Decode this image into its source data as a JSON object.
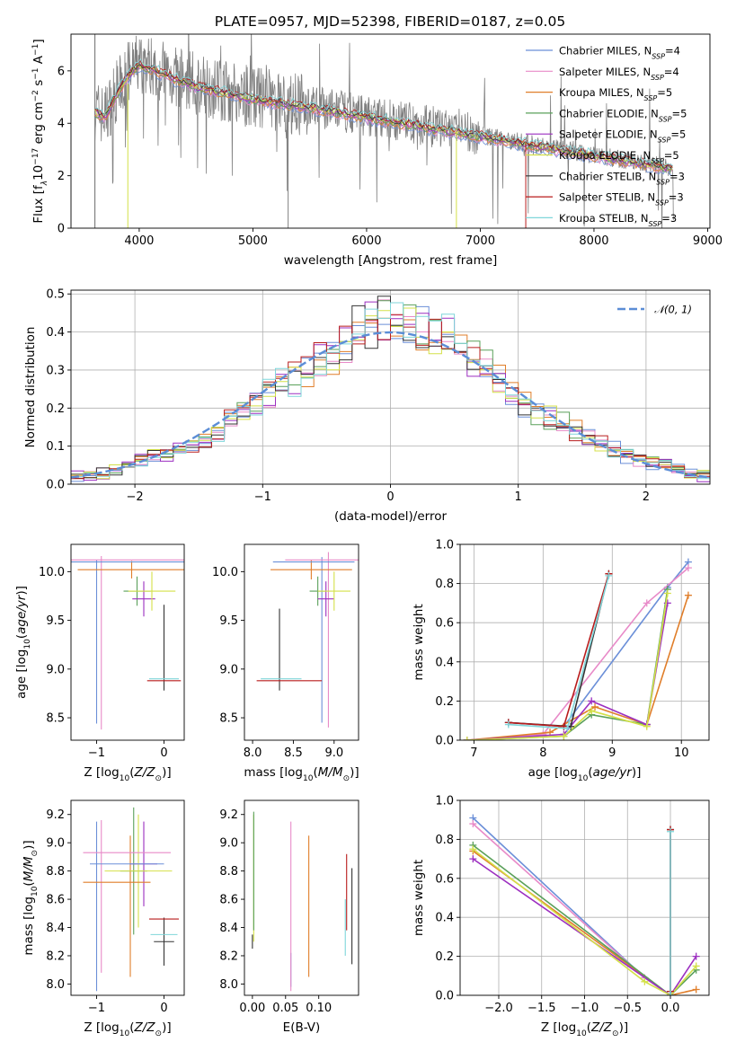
{
  "title": "PLATE=0957, MJD=52398, FIBERID=0187, z=0.05",
  "colors": {
    "Chabrier MILES": "#6b8fd8",
    "Salpeter MILES": "#e88ac8",
    "Kroupa MILES": "#e07e2a",
    "Chabrier ELODIE": "#5aa05a",
    "Salpeter ELODIE": "#9c2fc0",
    "Kroupa ELODIE": "#d4e048",
    "Chabrier STELIB": "#333333",
    "Salpeter STELIB": "#b81c1c",
    "Kroupa STELIB": "#7fd6da",
    "data": "#808080",
    "gaussian": "#5b8dd6"
  },
  "chart_data": [
    {
      "id": "spectrum",
      "type": "line",
      "xlabel": "wavelength [Angstrom, rest frame]",
      "ylabel": "Flux [f_λ 10^-17 erg cm^-2 s^-1 A^-1]",
      "xlim": [
        3400,
        9020
      ],
      "ylim": [
        0,
        7.4
      ],
      "xticks": [
        4000,
        5000,
        6000,
        7000,
        8000,
        9000
      ],
      "yticks": [
        0,
        2,
        4,
        6
      ],
      "legend_position": "upper right",
      "continuum": {
        "x": [
          3610,
          3700,
          3800,
          3900,
          4000,
          4100,
          4200,
          4300,
          4500,
          4700,
          5000,
          5300,
          5600,
          6000,
          6400,
          6800,
          7200,
          7600,
          8000,
          8400,
          8700
        ],
        "y": [
          4.5,
          4.3,
          5.2,
          5.9,
          6.3,
          6.2,
          6.0,
          5.8,
          5.5,
          5.3,
          5.0,
          4.8,
          4.6,
          4.3,
          4.0,
          3.7,
          3.4,
          3.1,
          2.8,
          2.5,
          2.3
        ]
      },
      "series": [
        {
          "name": "Chabrier MILES",
          "nssp": "4"
        },
        {
          "name": "Salpeter MILES",
          "nssp": "4"
        },
        {
          "name": "Kroupa MILES",
          "nssp": "5"
        },
        {
          "name": "Chabrier ELODIE",
          "nssp": "5"
        },
        {
          "name": "Salpeter ELODIE",
          "nssp": "5"
        },
        {
          "name": "Kroupa ELODIE",
          "nssp": "5"
        },
        {
          "name": "Chabrier STELIB",
          "nssp": "3"
        },
        {
          "name": "Salpeter STELIB",
          "nssp": "3"
        },
        {
          "name": "Kroupa STELIB",
          "nssp": "3"
        }
      ]
    },
    {
      "id": "residuals",
      "type": "line",
      "xlabel": "(data-model)/error",
      "ylabel": "Normed distribution",
      "xlim": [
        -2.5,
        2.5
      ],
      "ylim": [
        0,
        0.51
      ],
      "xticks": [
        -2,
        -1,
        0,
        1,
        2
      ],
      "yticks": [
        0.0,
        0.1,
        0.2,
        0.3,
        0.4,
        0.5
      ],
      "grid": true,
      "legend_position": "upper right",
      "legend": "N(0,1)",
      "bin_width": 0.1,
      "bin_start": -2.5,
      "histogram_base": [
        0.02,
        0.02,
        0.03,
        0.04,
        0.05,
        0.06,
        0.07,
        0.08,
        0.09,
        0.11,
        0.12,
        0.14,
        0.17,
        0.19,
        0.21,
        0.24,
        0.26,
        0.28,
        0.3,
        0.33,
        0.35,
        0.37,
        0.4,
        0.42,
        0.44,
        0.43,
        0.42,
        0.41,
        0.4,
        0.39,
        0.37,
        0.34,
        0.31,
        0.28,
        0.24,
        0.21,
        0.19,
        0.18,
        0.16,
        0.14,
        0.12,
        0.11,
        0.09,
        0.08,
        0.07,
        0.06,
        0.05,
        0.04,
        0.03,
        0.02
      ]
    },
    {
      "id": "age-vs-Z",
      "type": "scatter",
      "xlabel": "Z [log10(Z/Z⊙)]",
      "ylabel": "age [log10(age/yr)]",
      "xlim": [
        -1.38,
        0.3
      ],
      "ylim": [
        8.27,
        10.28
      ],
      "xticks": [
        -1,
        0
      ],
      "yticks": [
        8.5,
        9.0,
        9.5,
        10.0
      ],
      "points": [
        {
          "series": "Chabrier MILES",
          "x": -1.0,
          "y": 9.28,
          "xerr": 0.0,
          "yerr": 0.84
        },
        {
          "series": "Salpeter MILES",
          "x": -0.93,
          "y": 9.27,
          "xerr": 0.0,
          "yerr": 0.89
        },
        {
          "series": "Kroupa MILES",
          "x": -0.48,
          "y": 10.02,
          "xerr": 0.8,
          "yerr": 0.09
        },
        {
          "series": "Chabrier ELODIE",
          "x": -0.4,
          "y": 9.8,
          "xerr": 0.2,
          "yerr": 0.15
        },
        {
          "series": "Salpeter ELODIE",
          "x": -0.3,
          "y": 9.72,
          "xerr": 0.17,
          "yerr": 0.18
        },
        {
          "series": "Kroupa ELODIE",
          "x": -0.18,
          "y": 9.8,
          "xerr": 0.35,
          "yerr": 0.2
        },
        {
          "series": "Chabrier STELIB",
          "x": 0.0,
          "y": 9.22,
          "xerr": 0.0,
          "yerr": 0.44
        },
        {
          "series": "Salpeter STELIB",
          "x": 0.0,
          "y": 8.88,
          "xerr": 0.25,
          "yerr": 0.0
        },
        {
          "series": "Kroupa STELIB",
          "x": 0.0,
          "y": 8.9,
          "xerr": 0.22,
          "yerr": 0.0
        },
        {
          "series": "Salpeter MILES",
          "x": -0.55,
          "y": 10.12,
          "xerr": 1.2,
          "yerr": 0.0
        },
        {
          "series": "Chabrier MILES",
          "x": -0.45,
          "y": 10.1,
          "xerr": 1.0,
          "yerr": 0.0
        }
      ]
    },
    {
      "id": "age-vs-mass",
      "type": "scatter",
      "xlabel": "mass [log10(M/M⊙)]",
      "ylabel": "",
      "xlim": [
        7.9,
        9.3
      ],
      "ylim": [
        8.27,
        10.28
      ],
      "xticks": [
        8.0,
        8.5,
        9.0
      ],
      "yticks": [
        8.5,
        9.0,
        9.5,
        10.0
      ],
      "points": [
        {
          "series": "Chabrier MILES",
          "x": 8.85,
          "y": 9.3,
          "xerr": 0.0,
          "yerr": 0.85
        },
        {
          "series": "Salpeter MILES",
          "x": 8.93,
          "y": 9.3,
          "xerr": 0.0,
          "yerr": 0.9
        },
        {
          "series": "Kroupa MILES",
          "x": 8.72,
          "y": 10.02,
          "xerr": 0.5,
          "yerr": 0.1
        },
        {
          "series": "Chabrier ELODIE",
          "x": 8.8,
          "y": 9.8,
          "xerr": 0.1,
          "yerr": 0.15
        },
        {
          "series": "Salpeter ELODIE",
          "x": 8.9,
          "y": 9.72,
          "xerr": 0.1,
          "yerr": 0.18
        },
        {
          "series": "Kroupa ELODIE",
          "x": 9.0,
          "y": 9.8,
          "xerr": 0.2,
          "yerr": 0.2
        },
        {
          "series": "Chabrier STELIB",
          "x": 8.33,
          "y": 9.2,
          "xerr": 0.0,
          "yerr": 0.42
        },
        {
          "series": "Salpeter STELIB",
          "x": 8.45,
          "y": 8.88,
          "xerr": 0.4,
          "yerr": 0.0
        },
        {
          "series": "Kroupa STELIB",
          "x": 8.35,
          "y": 8.9,
          "xerr": 0.25,
          "yerr": 0.0
        },
        {
          "series": "Salpeter MILES",
          "x": 8.85,
          "y": 10.12,
          "xerr": 0.45,
          "yerr": 0.0
        },
        {
          "series": "Chabrier MILES",
          "x": 8.75,
          "y": 10.1,
          "xerr": 0.5,
          "yerr": 0.0
        }
      ]
    },
    {
      "id": "weight-vs-age",
      "type": "line",
      "xlabel": "age [log10(age/yr)]",
      "ylabel": "mass weight",
      "xlim": [
        6.8,
        10.4
      ],
      "ylim": [
        0.0,
        1.0
      ],
      "xticks": [
        7,
        8,
        9,
        10
      ],
      "yticks": [
        0.0,
        0.2,
        0.4,
        0.6,
        0.8,
        1.0
      ],
      "grid": true,
      "series": [
        {
          "name": "Chabrier MILES",
          "x": [
            7.5,
            8.3,
            9.8,
            10.1
          ],
          "y": [
            0.09,
            0.07,
            0.78,
            0.91
          ]
        },
        {
          "name": "Salpeter MILES",
          "x": [
            6.9,
            8.0,
            9.5,
            10.1
          ],
          "y": [
            0.0,
            0.03,
            0.7,
            0.88
          ]
        },
        {
          "name": "Kroupa MILES",
          "x": [
            6.9,
            8.1,
            8.75,
            9.5,
            10.1
          ],
          "y": [
            0.0,
            0.04,
            0.17,
            0.08,
            0.74
          ]
        },
        {
          "name": "Chabrier ELODIE",
          "x": [
            6.9,
            8.3,
            8.7,
            9.5,
            9.8
          ],
          "y": [
            0.0,
            0.02,
            0.13,
            0.08,
            0.77
          ]
        },
        {
          "name": "Salpeter ELODIE",
          "x": [
            6.9,
            8.3,
            8.7,
            9.5,
            9.8
          ],
          "y": [
            0.0,
            0.03,
            0.2,
            0.08,
            0.7
          ]
        },
        {
          "name": "Kroupa ELODIE",
          "x": [
            6.9,
            8.3,
            8.7,
            9.5,
            9.8
          ],
          "y": [
            0.0,
            0.02,
            0.15,
            0.07,
            0.75
          ]
        },
        {
          "name": "Chabrier STELIB",
          "x": [
            7.5,
            8.4,
            8.95
          ],
          "y": [
            0.09,
            0.07,
            0.85
          ]
        },
        {
          "name": "Salpeter STELIB",
          "x": [
            7.5,
            8.3,
            8.95
          ],
          "y": [
            0.09,
            0.07,
            0.85
          ]
        },
        {
          "name": "Kroupa STELIB",
          "x": [
            7.5,
            8.35,
            8.95
          ],
          "y": [
            0.08,
            0.06,
            0.84
          ]
        }
      ]
    },
    {
      "id": "mass-vs-Z",
      "type": "scatter",
      "xlabel": "Z [log10(Z/Z⊙)]",
      "ylabel": "mass [log10(M/M⊙)]",
      "xlim": [
        -1.38,
        0.3
      ],
      "ylim": [
        7.92,
        9.3
      ],
      "xticks": [
        -1,
        0
      ],
      "yticks": [
        8.0,
        8.2,
        8.4,
        8.6,
        8.8,
        9.0,
        9.2
      ],
      "points": [
        {
          "series": "Chabrier MILES",
          "x": -1.0,
          "y": 8.55,
          "xerr": 0.0,
          "yerr": 0.6
        },
        {
          "series": "Salpeter MILES",
          "x": -0.93,
          "y": 8.62,
          "xerr": 0.0,
          "yerr": 0.54
        },
        {
          "series": "Kroupa MILES",
          "x": -0.5,
          "y": 8.55,
          "xerr": 0.0,
          "yerr": 0.5
        },
        {
          "series": "Chabrier ELODIE",
          "x": -0.45,
          "y": 8.8,
          "xerr": 0.2,
          "yerr": 0.45
        },
        {
          "series": "Salpeter ELODIE",
          "x": -0.3,
          "y": 8.85,
          "xerr": 0.2,
          "yerr": 0.3
        },
        {
          "series": "Kroupa ELODIE",
          "x": -0.38,
          "y": 8.8,
          "xerr": 0.5,
          "yerr": 0.4
        },
        {
          "series": "Chabrier STELIB",
          "x": 0.0,
          "y": 8.3,
          "xerr": 0.15,
          "yerr": 0.17
        },
        {
          "series": "Salpeter STELIB",
          "x": 0.0,
          "y": 8.46,
          "xerr": 0.22,
          "yerr": 0.0
        },
        {
          "series": "Kroupa STELIB",
          "x": 0.0,
          "y": 8.35,
          "xerr": 0.2,
          "yerr": 0.0
        },
        {
          "series": "Salpeter MILES",
          "x": -0.55,
          "y": 8.93,
          "xerr": 0.65,
          "yerr": 0.0
        },
        {
          "series": "Chabrier MILES",
          "x": -0.55,
          "y": 8.85,
          "xerr": 0.55,
          "yerr": 0.0
        },
        {
          "series": "Kroupa MILES",
          "x": -0.7,
          "y": 8.72,
          "xerr": 0.5,
          "yerr": 0.0
        }
      ]
    },
    {
      "id": "mass-vs-EBV",
      "type": "scatter",
      "xlabel": "E(B-V)",
      "ylabel": "",
      "xlim": [
        -0.012,
        0.16
      ],
      "ylim": [
        7.92,
        9.3
      ],
      "xticks": [
        0.0,
        0.05,
        0.1
      ],
      "yticks": [
        8.0,
        8.2,
        8.4,
        8.6,
        8.8,
        9.0,
        9.2
      ],
      "points": [
        {
          "series": "Kroupa ELODIE",
          "x": 0.002,
          "y": 8.75,
          "xerr": 0.0,
          "yerr": 0.45
        },
        {
          "series": "Chabrier ELODIE",
          "x": 0.002,
          "y": 8.8,
          "xerr": 0.0,
          "yerr": 0.42
        },
        {
          "series": "Chabrier STELIB",
          "x": 0.0,
          "y": 8.3,
          "xerr": 0.0,
          "yerr": 0.05
        },
        {
          "series": "Chabrier MILES",
          "x": 0.058,
          "y": 8.1,
          "xerr": 0.0,
          "yerr": 0.12
        },
        {
          "series": "Salpeter MILES",
          "x": 0.058,
          "y": 8.55,
          "xerr": 0.0,
          "yerr": 0.6
        },
        {
          "series": "Kroupa MILES",
          "x": 0.085,
          "y": 8.55,
          "xerr": 0.0,
          "yerr": 0.5
        },
        {
          "series": "Kroupa STELIB",
          "x": 0.14,
          "y": 8.4,
          "xerr": 0.0,
          "yerr": 0.2
        },
        {
          "series": "Salpeter STELIB",
          "x": 0.142,
          "y": 8.65,
          "xerr": 0.0,
          "yerr": 0.27
        },
        {
          "series": "Chabrier STELIB",
          "x": 0.15,
          "y": 8.48,
          "xerr": 0.0,
          "yerr": 0.34
        }
      ]
    },
    {
      "id": "weight-vs-Z",
      "type": "line",
      "xlabel": "Z [log10(Z/Z⊙)]",
      "ylabel": "mass weight",
      "xlim": [
        -2.45,
        0.45
      ],
      "ylim": [
        0.0,
        1.0
      ],
      "xticks": [
        -2.0,
        -1.5,
        -1.0,
        -0.5,
        0.0
      ],
      "yticks": [
        0.0,
        0.2,
        0.4,
        0.6,
        0.8,
        1.0
      ],
      "grid": true,
      "series": [
        {
          "name": "Chabrier MILES",
          "x": [
            -2.3,
            -0.3,
            0.0
          ],
          "y": [
            0.91,
            0.09,
            0.0
          ]
        },
        {
          "name": "Salpeter MILES",
          "x": [
            -2.3,
            -0.3,
            0.0
          ],
          "y": [
            0.88,
            0.09,
            0.0
          ]
        },
        {
          "name": "Kroupa MILES",
          "x": [
            -2.3,
            0.0,
            0.3
          ],
          "y": [
            0.74,
            0.0,
            0.03
          ]
        },
        {
          "name": "Chabrier ELODIE",
          "x": [
            -2.3,
            0.0,
            0.3
          ],
          "y": [
            0.77,
            0.0,
            0.13
          ]
        },
        {
          "name": "Salpeter ELODIE",
          "x": [
            -2.3,
            0.0,
            0.3
          ],
          "y": [
            0.7,
            0.0,
            0.2
          ]
        },
        {
          "name": "Kroupa ELODIE",
          "x": [
            -2.3,
            -0.3,
            0.0,
            0.3
          ],
          "y": [
            0.75,
            0.07,
            0.0,
            0.15
          ]
        },
        {
          "name": "Chabrier STELIB",
          "x": [
            0.0,
            0.0
          ],
          "y": [
            0.0,
            0.85
          ]
        },
        {
          "name": "Salpeter STELIB",
          "x": [
            0.0,
            0.0
          ],
          "y": [
            0.02,
            0.85
          ]
        },
        {
          "name": "Kroupa STELIB",
          "x": [
            0.0,
            0.0
          ],
          "y": [
            0.0,
            0.84
          ]
        }
      ]
    }
  ]
}
